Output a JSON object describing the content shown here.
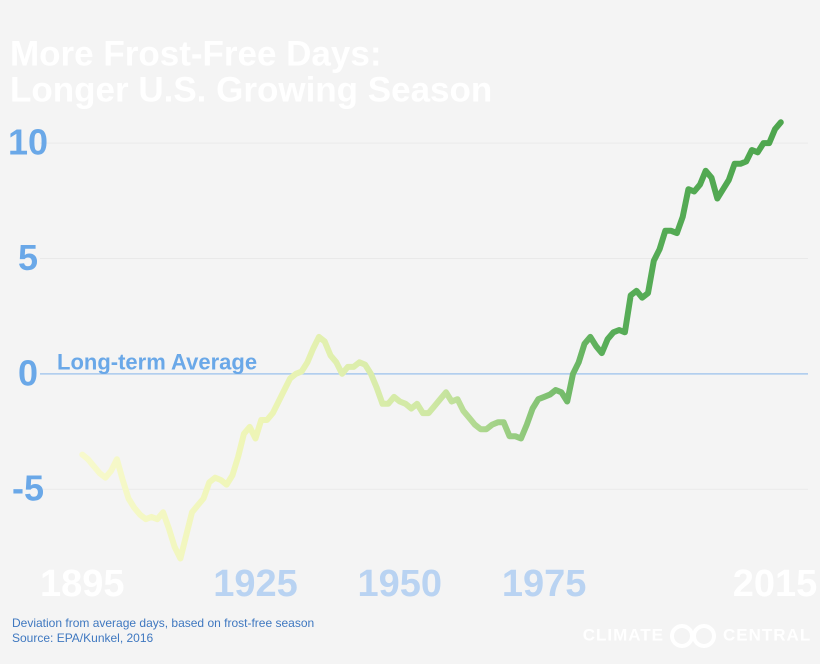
{
  "chart_data": {
    "type": "line",
    "title": [
      "More Frost-Free Days:",
      "Longer U.S. Growing Season"
    ],
    "annotation": "Long-term Average",
    "note": "Deviation from average days, based on frost-free season",
    "source": "Source: EPA/Kunkel, 2016",
    "logo": [
      "CLIMATE",
      "CENTRAL"
    ],
    "x": [
      1895,
      1896,
      1897,
      1898,
      1899,
      1900,
      1901,
      1902,
      1903,
      1904,
      1905,
      1906,
      1907,
      1908,
      1909,
      1910,
      1911,
      1912,
      1913,
      1914,
      1915,
      1916,
      1917,
      1918,
      1919,
      1920,
      1921,
      1922,
      1923,
      1924,
      1925,
      1926,
      1927,
      1928,
      1929,
      1930,
      1931,
      1932,
      1933,
      1934,
      1935,
      1936,
      1937,
      1938,
      1939,
      1940,
      1941,
      1942,
      1943,
      1944,
      1945,
      1946,
      1947,
      1948,
      1949,
      1950,
      1951,
      1952,
      1953,
      1954,
      1955,
      1956,
      1957,
      1958,
      1959,
      1960,
      1961,
      1962,
      1963,
      1964,
      1965,
      1966,
      1967,
      1968,
      1969,
      1970,
      1971,
      1972,
      1973,
      1974,
      1975,
      1976,
      1977,
      1978,
      1979,
      1980,
      1981,
      1982,
      1983,
      1984,
      1985,
      1986,
      1987,
      1988,
      1989,
      1990,
      1991,
      1992,
      1993,
      1994,
      1995,
      1996,
      1997,
      1998,
      1999,
      2000,
      2001,
      2002,
      2003,
      2004,
      2005,
      2006,
      2007,
      2008,
      2009,
      2010,
      2011,
      2012,
      2013,
      2014,
      2015,
      2016
    ],
    "values": [
      -3.5,
      -3.7,
      -4.0,
      -4.3,
      -4.5,
      -4.2,
      -3.7,
      -4.6,
      -5.4,
      -5.8,
      -6.1,
      -6.3,
      -6.2,
      -6.3,
      -6.0,
      -6.7,
      -7.5,
      -8.0,
      -7.0,
      -6.0,
      -5.7,
      -5.4,
      -4.7,
      -4.5,
      -4.6,
      -4.8,
      -4.4,
      -3.6,
      -2.6,
      -2.3,
      -2.8,
      -2.0,
      -2.0,
      -1.7,
      -1.2,
      -0.7,
      -0.2,
      0.0,
      0.1,
      0.5,
      1.1,
      1.6,
      1.4,
      0.8,
      0.5,
      0.0,
      0.3,
      0.3,
      0.5,
      0.4,
      0.0,
      -0.6,
      -1.3,
      -1.3,
      -1.0,
      -1.2,
      -1.3,
      -1.5,
      -1.3,
      -1.7,
      -1.7,
      -1.4,
      -1.1,
      -0.8,
      -1.2,
      -1.1,
      -1.6,
      -1.9,
      -2.2,
      -2.4,
      -2.4,
      -2.2,
      -2.1,
      -2.1,
      -2.7,
      -2.7,
      -2.8,
      -2.2,
      -1.5,
      -1.1,
      -1.0,
      -0.9,
      -0.7,
      -0.8,
      -1.2,
      0.0,
      0.5,
      1.3,
      1.6,
      1.2,
      0.9,
      1.5,
      1.8,
      1.9,
      1.8,
      3.4,
      3.6,
      3.3,
      3.5,
      4.9,
      5.4,
      6.2,
      6.2,
      6.1,
      6.8,
      8.0,
      7.9,
      8.2,
      8.8,
      8.5,
      7.6,
      8.0,
      8.4,
      9.1,
      9.1,
      9.2,
      9.7,
      9.6,
      10.0,
      10.0,
      10.6,
      10.9
    ],
    "color_stops": [
      "#f7f9cc",
      "#eef5b6",
      "#cfe8a4",
      "#58ad58",
      "#4ea64e"
    ],
    "xlim": [
      1883,
      2019.5
    ],
    "xticks": [
      1895,
      1925,
      1950,
      1975,
      2015
    ],
    "ylim": [
      -8.5,
      11
    ],
    "yticks": [
      10,
      5,
      0,
      -5
    ],
    "grid": true
  }
}
